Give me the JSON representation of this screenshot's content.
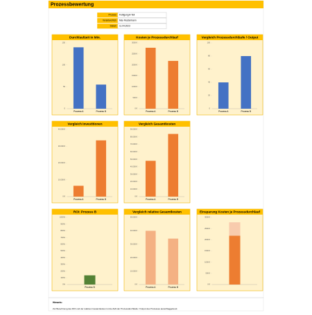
{
  "header": {
    "title": "Prozessbewertung",
    "info": [
      [
        "Prozess",
        "Fertigung A-Teil"
      ],
      [
        "Verantwortlich",
        "Max Mustermann"
      ],
      [
        "Datum",
        "11.04.2023"
      ]
    ]
  },
  "chart_data": [
    {
      "type": "bar",
      "title": "Durchlaufzeit in Min.",
      "categories": [
        "Prozess A",
        "Prozess B"
      ],
      "values": [
        140,
        55
      ],
      "color": "#4472c4",
      "ylim": [
        0,
        150
      ],
      "yticks": [
        0,
        50,
        100,
        150
      ]
    },
    {
      "type": "bar",
      "title": "Kosten je Prozessdurchlauf",
      "categories": [
        "Prozess A",
        "Prozess B"
      ],
      "values": [
        2780,
        2180
      ],
      "color": "#ed7d31",
      "ylim": [
        0,
        3000
      ],
      "yticks": [
        {
          "value": 0,
          "label": "0 €"
        },
        {
          "value": 500,
          "label": "500 €"
        },
        {
          "value": 1000,
          "label": "1000 €"
        },
        {
          "value": 1500,
          "label": "1500 €"
        },
        {
          "value": 2000,
          "label": "2000 €"
        },
        {
          "value": 2500,
          "label": "2500 €"
        },
        {
          "value": 3000,
          "label": "3000 €"
        }
      ]
    },
    {
      "type": "bar",
      "title": "Vergleich Prozessdurchläufe / Output",
      "categories": [
        "Prozess A",
        "Prozess B"
      ],
      "values": [
        40,
        80
      ],
      "color": "#4472c4",
      "ylim": [
        0,
        100
      ],
      "yticks": [
        0,
        20,
        40,
        60,
        80,
        100
      ]
    },
    {
      "type": "bar",
      "title": "Vergleich Investitionen",
      "categories": [
        "Prozess A",
        "Prozess B"
      ],
      "values": [
        6450,
        33500
      ],
      "color": "#ed7d31",
      "ylim": [
        0,
        40000
      ],
      "yticks": [
        {
          "value": 0,
          "label": "0 €"
        },
        {
          "value": 10000,
          "label": "10.000 €"
        },
        {
          "value": 20000,
          "label": "20.000 €"
        },
        {
          "value": 30000,
          "label": "30.000 €"
        },
        {
          "value": 40000,
          "label": "40.000 €"
        }
      ]
    },
    {
      "type": "bar",
      "title": "Vergleich Gesamtkosten",
      "categories": [
        "Prozess A",
        "Prozess B"
      ],
      "values": [
        48000,
        84000
      ],
      "color": "#ed7d31",
      "ylim": [
        0,
        90000
      ],
      "yticks": [
        {
          "value": 0,
          "label": "0 €"
        },
        {
          "value": 10000,
          "label": "10.000 €"
        },
        {
          "value": 20000,
          "label": "20.000 €"
        },
        {
          "value": 30000,
          "label": "30.000 €"
        },
        {
          "value": 40000,
          "label": "40.000 €"
        },
        {
          "value": 50000,
          "label": "50.000 €"
        },
        {
          "value": 60000,
          "label": "60.000 €"
        },
        {
          "value": 70000,
          "label": "70.000 €"
        },
        {
          "value": 80000,
          "label": "80.000 €"
        },
        {
          "value": 90000,
          "label": "90.000 €"
        }
      ]
    },
    {
      "type": "bar",
      "title": "ROI: Prozess B",
      "categories": [
        "Prozess B"
      ],
      "values": [
        137
      ],
      "color": "#548235",
      "ylim": [
        0,
        1000
      ],
      "yticks": [
        {
          "value": 0,
          "label": "0%"
        },
        {
          "value": 100,
          "label": "100%"
        },
        {
          "value": 200,
          "label": "200%"
        },
        {
          "value": 300,
          "label": "300%"
        },
        {
          "value": 400,
          "label": "400%"
        },
        {
          "value": 500,
          "label": "500%"
        },
        {
          "value": 600,
          "label": "600%"
        },
        {
          "value": 700,
          "label": "700%"
        },
        {
          "value": 800,
          "label": "800%"
        },
        {
          "value": 900,
          "label": "900%"
        },
        {
          "value": 1000,
          "label": "1000%"
        }
      ]
    },
    {
      "type": "bar",
      "title": "Vergleich relative Gesamtkosten",
      "categories": [
        "Prozess A",
        "Prozess B"
      ],
      "values": [
        40000,
        34200
      ],
      "color": "#f4b183",
      "ylim": [
        0,
        50000
      ],
      "yticks": [
        {
          "value": 0,
          "label": "0 €"
        },
        {
          "value": 10000,
          "label": "10.000 €"
        },
        {
          "value": 20000,
          "label": "20.000 €"
        },
        {
          "value": 30000,
          "label": "30.000 €"
        },
        {
          "value": 40000,
          "label": "40.000 €"
        },
        {
          "value": 50000,
          "label": "50.000 €"
        }
      ]
    },
    {
      "type": "stacked_bar",
      "title": "Einsparung Kosten je Prozessdurchlauf",
      "categories": [
        null
      ],
      "series": [
        {
          "color": "#ed7d31",
          "values": [
            2180
          ]
        },
        {
          "color": "#f8cbad",
          "values": [
            600
          ]
        }
      ],
      "ylim": [
        0,
        3000
      ],
      "yticks": [
        {
          "value": 0,
          "label": "0 €"
        },
        {
          "value": 500,
          "label": "500 €"
        },
        {
          "value": 1000,
          "label": "1000 €"
        },
        {
          "value": 1500,
          "label": "1500 €"
        },
        {
          "value": 2000,
          "label": "2000 €"
        },
        {
          "value": 2500,
          "label": "2500 €"
        },
        {
          "value": 3000,
          "label": "3000 €"
        }
      ]
    }
  ],
  "note": {
    "title": "Hinweis:",
    "text": "Zur Berechnung des ROI und der relativen Gesamtkosten ist die Zahl der Prozessdurchläufe / Output des Prozesses ausschlaggebend."
  }
}
